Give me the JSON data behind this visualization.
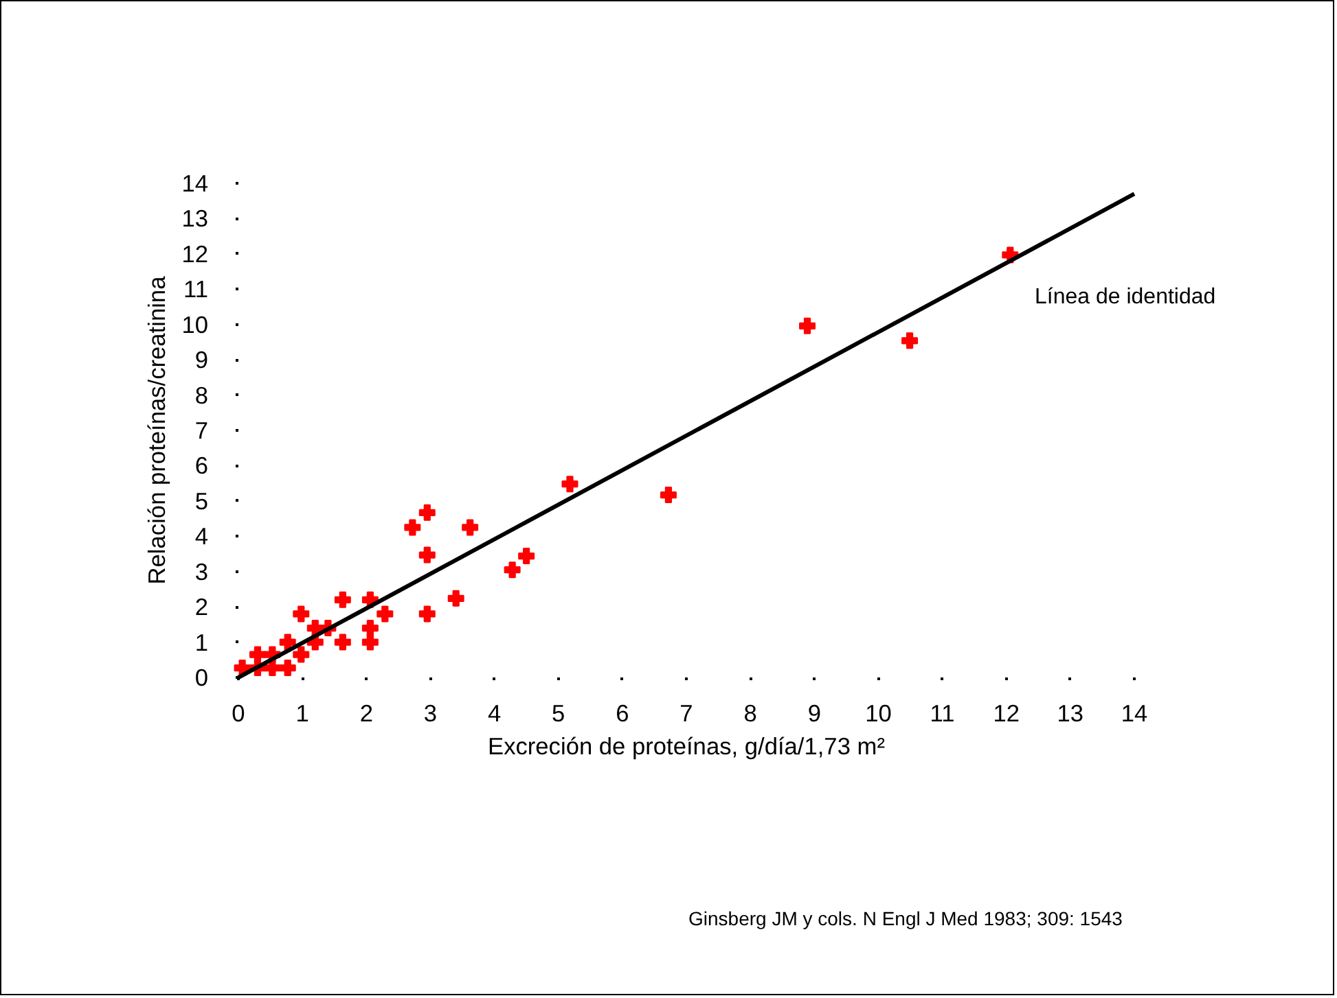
{
  "chart_data": {
    "type": "scatter",
    "xlabel": "Excreción de proteínas, g/día/1,73 m²",
    "ylabel": "Relación proteínas/creatinina",
    "x": [
      0.06,
      0.3,
      0.3,
      0.53,
      0.53,
      0.77,
      0.77,
      0.98,
      0.98,
      1.2,
      1.2,
      1.4,
      1.63,
      1.63,
      2.06,
      2.06,
      2.06,
      2.29,
      2.72,
      2.95,
      2.95,
      2.95,
      3.4,
      3.62,
      4.28,
      4.5,
      5.18,
      6.72,
      8.89,
      10.49,
      12.06
    ],
    "series": [
      {
        "type": "scatter",
        "color": "#ff0000",
        "marker": "cross",
        "values": [
          0.27,
          0.65,
          0.27,
          0.65,
          0.27,
          0.27,
          1.0,
          0.65,
          1.8,
          1.0,
          1.4,
          1.4,
          1.0,
          2.2,
          2.2,
          1.4,
          1.0,
          1.8,
          4.25,
          4.67,
          3.47,
          1.8,
          2.24,
          4.25,
          3.05,
          3.44,
          5.48,
          5.17,
          9.96,
          9.54,
          11.97
        ]
      },
      {
        "type": "line",
        "color": "#000000",
        "x": [
          0,
          14
        ],
        "values": [
          0,
          13.7
        ],
        "line_style": "solid"
      }
    ],
    "xlim": [
      0,
      14
    ],
    "ylim": [
      0,
      14
    ],
    "xticks": [
      0,
      1,
      2,
      3,
      4,
      5,
      6,
      7,
      8,
      9,
      10,
      11,
      12,
      13,
      14
    ],
    "yticks": [
      0,
      1,
      2,
      3,
      4,
      5,
      6,
      7,
      8,
      9,
      10,
      11,
      12,
      13,
      14
    ],
    "grid": false,
    "annotations": [
      "Línea de identidad",
      "Ginsberg JM y cols. N Engl J Med 1983; 309: 1543"
    ]
  }
}
